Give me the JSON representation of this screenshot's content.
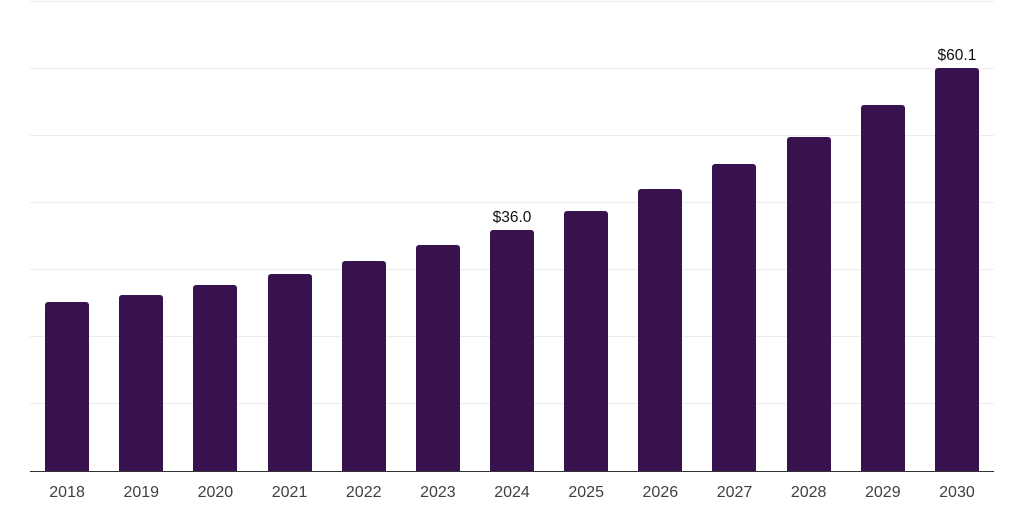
{
  "chart_data": {
    "type": "bar",
    "title": "",
    "xlabel": "",
    "ylabel": "",
    "categories": [
      "2018",
      "2019",
      "2020",
      "2021",
      "2022",
      "2023",
      "2024",
      "2025",
      "2026",
      "2027",
      "2028",
      "2029",
      "2030"
    ],
    "values": [
      25.2,
      26.3,
      27.8,
      29.4,
      31.4,
      33.8,
      36.0,
      38.8,
      42.1,
      45.8,
      49.9,
      54.7,
      60.1
    ],
    "data_labels": [
      "",
      "",
      "",
      "",
      "",
      "",
      "$36.0",
      "",
      "",
      "",
      "",
      "",
      "$60.1"
    ],
    "ylim": [
      0,
      70
    ],
    "gridline_step": 10,
    "grid": true,
    "legend_position": "none",
    "colors": {
      "bar": "#38114F",
      "gridline": "#ececec",
      "axis_line": "#333333",
      "tick_label": "#404040",
      "value_label": "#111111"
    }
  }
}
